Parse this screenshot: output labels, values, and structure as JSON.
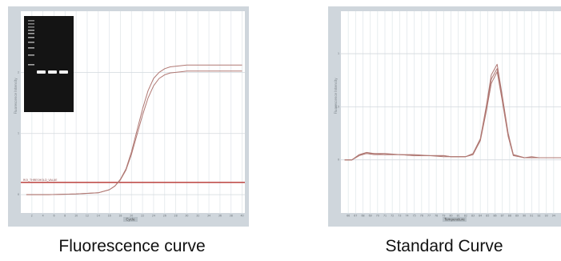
{
  "captions": {
    "left": "Fluorescence curve",
    "right": "Standard Curve"
  },
  "colors": {
    "frame": "#cfd6dc",
    "plot_bg": "#ffffff",
    "grid": "#e2e7eb",
    "curve": "#b07873",
    "threshold": "#c0504d",
    "gel_bg": "#141414",
    "gel_band": "#f2f2f2"
  },
  "chart_data": [
    {
      "type": "line",
      "xlabel": "Cycle",
      "ylabel": "Fluorescence Intensity",
      "xlim": [
        0,
        40.5
      ],
      "ylim": [
        -0.3,
        3
      ],
      "xticks": [
        "2",
        "4",
        "6",
        "8",
        "10",
        "12",
        "14",
        "16",
        "18",
        "20",
        "22",
        "24",
        "26",
        "28",
        "30",
        "32",
        "34",
        "36",
        "38",
        "40"
      ],
      "yticks": [
        0,
        1,
        2
      ],
      "threshold": {
        "value": 0.2,
        "label": "ROI_THRESHOLD_VALUE"
      },
      "x": [
        1,
        5,
        10,
        14,
        16,
        17,
        18,
        19,
        20,
        21,
        22,
        23,
        24,
        25,
        26,
        27,
        28,
        29,
        30,
        32,
        35,
        40
      ],
      "series": [
        {
          "values": [
            0,
            0,
            0.01,
            0.03,
            0.08,
            0.14,
            0.25,
            0.42,
            0.7,
            1.05,
            1.4,
            1.7,
            1.9,
            2.0,
            2.06,
            2.09,
            2.1,
            2.11,
            2.12,
            2.12,
            2.12,
            2.12
          ]
        },
        {
          "values": [
            0,
            0,
            0.01,
            0.03,
            0.08,
            0.14,
            0.24,
            0.4,
            0.66,
            0.98,
            1.3,
            1.58,
            1.78,
            1.9,
            1.96,
            1.99,
            2.0,
            2.01,
            2.02,
            2.02,
            2.02,
            2.02
          ]
        }
      ],
      "inset": {
        "type": "gel",
        "ladder_lane": true,
        "sample_lanes": 3
      }
    },
    {
      "type": "line",
      "xlabel": "Temperature",
      "ylabel": "Fluorescence Intensity",
      "xlim": [
        65,
        95
      ],
      "ylim": [
        -0.5,
        1.4
      ],
      "xticks": [
        "66",
        "67",
        "68",
        "69",
        "70",
        "71",
        "72",
        "73",
        "74",
        "75",
        "76",
        "77",
        "78",
        "79",
        "80",
        "81",
        "82",
        "83",
        "84",
        "85",
        "86",
        "87",
        "88",
        "89",
        "90",
        "91",
        "92",
        "93",
        "94"
      ],
      "yticks": [
        0,
        0.5,
        1
      ],
      "x": [
        65.5,
        66.5,
        67.5,
        68.5,
        69.5,
        71,
        73,
        75,
        77,
        79,
        80,
        81,
        82,
        83,
        84,
        84.8,
        85.5,
        86.3,
        87,
        87.8,
        88.5,
        90,
        91,
        92,
        94,
        95
      ],
      "series": [
        {
          "values": [
            0,
            0,
            0.05,
            0.07,
            0.06,
            0.06,
            0.05,
            0.05,
            0.04,
            0.04,
            0.03,
            0.03,
            0.03,
            0.06,
            0.2,
            0.5,
            0.8,
            0.9,
            0.6,
            0.25,
            0.05,
            0.02,
            0.03,
            0.02,
            0.02,
            0.02
          ]
        },
        {
          "values": [
            0,
            0,
            0.04,
            0.06,
            0.06,
            0.05,
            0.05,
            0.04,
            0.04,
            0.03,
            0.03,
            0.03,
            0.03,
            0.05,
            0.18,
            0.45,
            0.72,
            0.83,
            0.55,
            0.22,
            0.04,
            0.02,
            0.02,
            0.02,
            0.02,
            0.02
          ]
        },
        {
          "values": [
            0,
            0,
            0.05,
            0.06,
            0.05,
            0.05,
            0.05,
            0.04,
            0.04,
            0.04,
            0.03,
            0.03,
            0.03,
            0.05,
            0.19,
            0.48,
            0.76,
            0.86,
            0.58,
            0.24,
            0.05,
            0.02,
            0.02,
            0.02,
            0.02,
            0.02
          ]
        }
      ]
    }
  ]
}
